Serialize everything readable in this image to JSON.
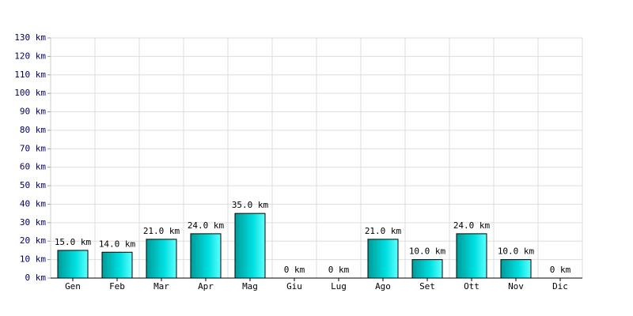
{
  "chart_data": {
    "type": "bar",
    "categories": [
      "Gen",
      "Feb",
      "Mar",
      "Apr",
      "Mag",
      "Giu",
      "Lug",
      "Ago",
      "Set",
      "Ott",
      "Nov",
      "Dic"
    ],
    "values": [
      15,
      14,
      21,
      24,
      35,
      0,
      0,
      21,
      10,
      24,
      10,
      0
    ],
    "value_labels": [
      "15.0 km",
      "14.0 km",
      "21.0 km",
      "24.0 km",
      "35.0 km",
      "0 km",
      "0 km",
      "21.0 km",
      "10.0 km",
      "24.0 km",
      "10.0 km",
      "0 km"
    ],
    "ylim": [
      0,
      130
    ],
    "yticks": [
      {
        "value": 0,
        "label": "0 km"
      },
      {
        "value": 10,
        "label": "10 km"
      },
      {
        "value": 20,
        "label": "20 km"
      },
      {
        "value": 30,
        "label": "30 km"
      },
      {
        "value": 40,
        "label": "40 km"
      },
      {
        "value": 50,
        "label": "50 km"
      },
      {
        "value": 60,
        "label": "60 km"
      },
      {
        "value": 70,
        "label": "70 km"
      },
      {
        "value": 80,
        "label": "80 km"
      },
      {
        "value": 90,
        "label": "90 km"
      },
      {
        "value": 100,
        "label": "100 km"
      },
      {
        "value": 110,
        "label": "110 km"
      },
      {
        "value": 120,
        "label": "120 km"
      },
      {
        "value": 130,
        "label": "130 km"
      }
    ],
    "grid": true
  }
}
